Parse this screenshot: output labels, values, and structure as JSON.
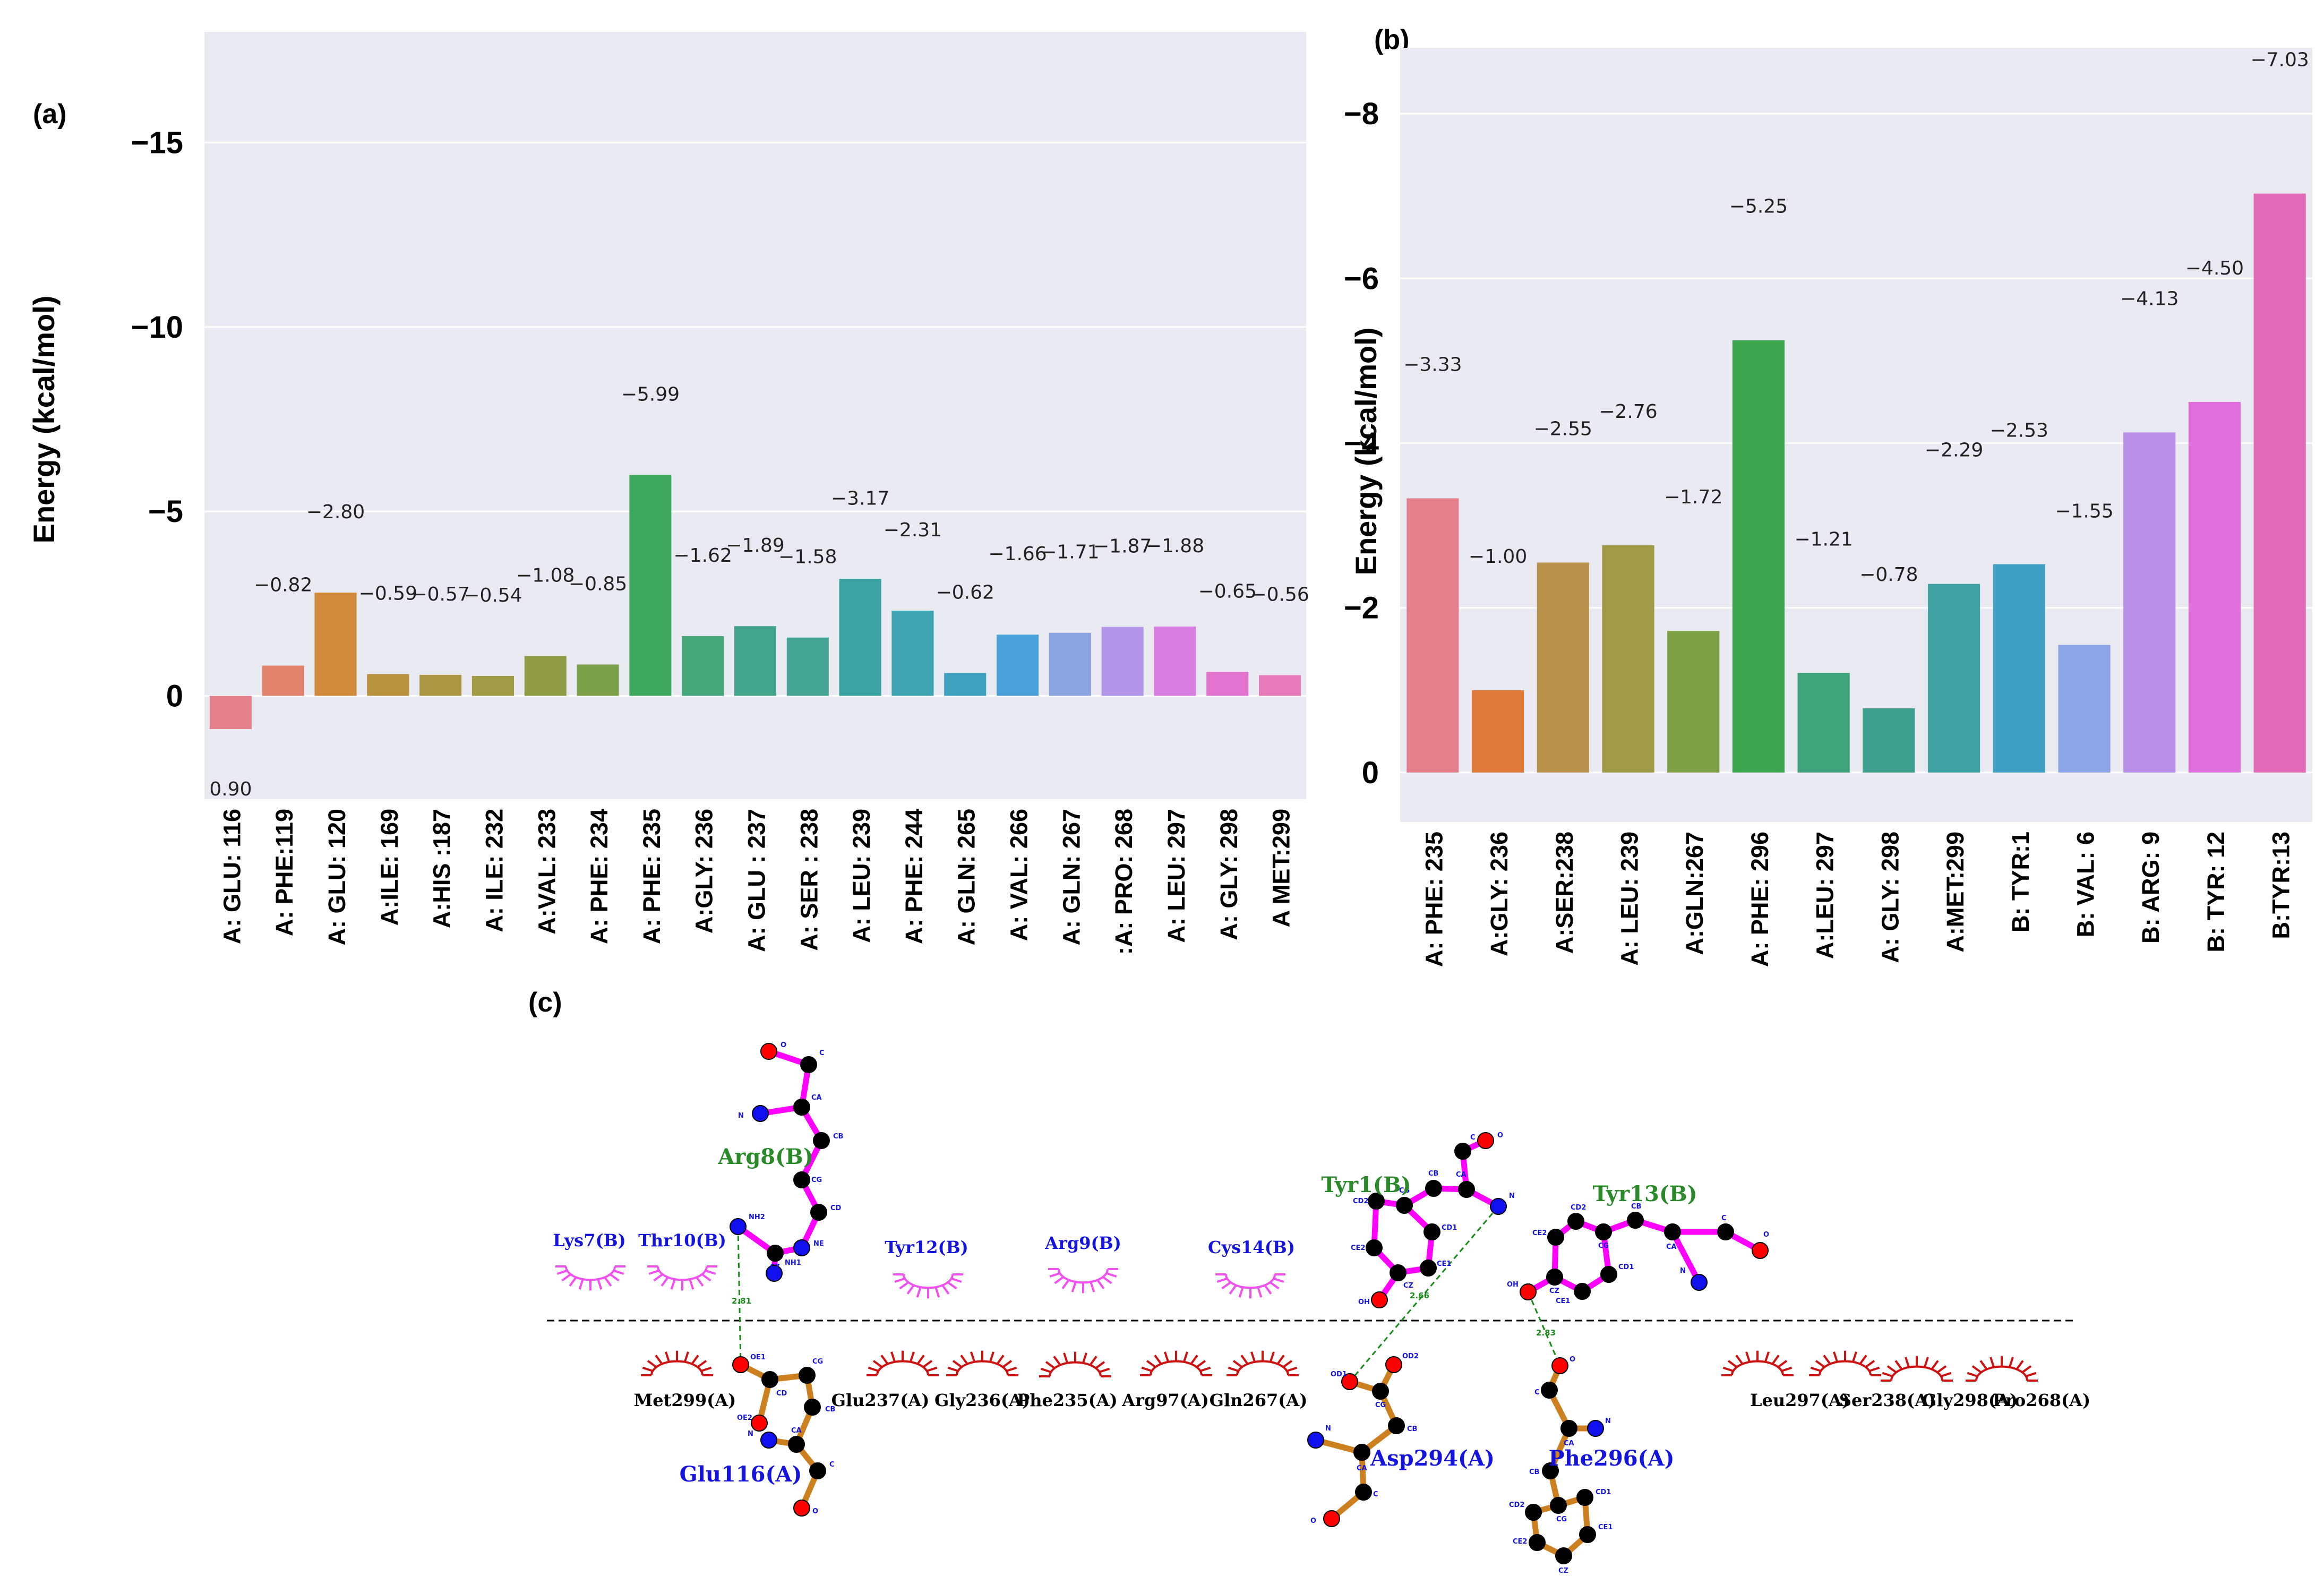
{
  "chart_data": [
    {
      "type": "bar",
      "panel": "(a)",
      "ylabel": "Energy (kcal/mol)",
      "ylim_display": [
        -18,
        2.8
      ],
      "inverted_y": true,
      "yticks": [
        {
          "value": -15,
          "label": "−15"
        },
        {
          "value": -10,
          "label": "−10"
        },
        {
          "value": -5,
          "label": "−5"
        },
        {
          "value": 0,
          "label": "0"
        }
      ],
      "categories": [
        "A: GLU: 116",
        "A: PHE:119",
        "A: GLU: 120",
        "A:ILE: 169",
        "A:HIS :187",
        "A: ILE: 232",
        "A:VAL: 233",
        "A: PHE: 234",
        "A: PHE: 235",
        "A:GLY: 236",
        "A: GLU : 237",
        "A: SER : 238",
        "A: LEU: 239",
        "A: PHE: 244",
        "A: GLN: 265",
        "A: VAL: 266",
        "A: GLN: 267",
        ":A: PRO: 268",
        "A: LEU: 297",
        "A: GLY: 298",
        "A MET:299"
      ],
      "values": [
        0.9,
        -0.82,
        -2.8,
        -0.59,
        -0.57,
        -0.54,
        -1.08,
        -0.85,
        -5.99,
        -1.62,
        -1.89,
        -1.58,
        -3.17,
        -2.31,
        -0.62,
        -1.66,
        -1.71,
        -1.87,
        -1.88,
        -0.65,
        -0.56
      ],
      "value_labels": [
        "0.90",
        "−0.82",
        "−2.80",
        "−0.59",
        "−0.57",
        "−0.54",
        "−1.08",
        "−0.85",
        "−5.99",
        "−1.62",
        "−1.89",
        "−1.58",
        "−3.17",
        "−2.31",
        "−0.62",
        "−1.66",
        "−1.71",
        "−1.87",
        "−1.88",
        "−0.65",
        "−0.56"
      ],
      "colors": [
        "#e57f8c",
        "#e0826c",
        "#cf8a3a",
        "#b8923c",
        "#ac9540",
        "#a09a45",
        "#8f9c45",
        "#7ca04a",
        "#3ea85c",
        "#44a679",
        "#42a58a",
        "#44a595",
        "#3aa3a2",
        "#3ea4b0",
        "#3fa1c0",
        "#4aa0d9",
        "#8aa5e0",
        "#b196ea",
        "#d77ee0",
        "#e274d0",
        "#e77ab8"
      ]
    },
    {
      "type": "bar",
      "panel": "(b)",
      "ylabel": "Energy (kcal/mol)",
      "ylim_display": [
        -8.8,
        0.6
      ],
      "inverted_y": true,
      "yticks": [
        {
          "value": -8,
          "label": "−8"
        },
        {
          "value": -6,
          "label": "−6"
        },
        {
          "value": -4,
          "label": "−4"
        },
        {
          "value": -2,
          "label": "−2"
        },
        {
          "value": 0,
          "label": "0"
        }
      ],
      "categories": [
        "A: PHE: 235",
        "A:GLY: 236",
        "A:SER:238",
        "A: LEU: 239",
        "A:GLN:267",
        "A: PHE: 296",
        "A:LEU: 297",
        "A: GLY: 298",
        "A:MET:299",
        "B: TYR:1",
        "B: VAL: 6",
        "B: ARG: 9",
        "B: TYR: 12",
        "B:TYR:13"
      ],
      "values": [
        -3.33,
        -1.0,
        -2.55,
        -2.76,
        -1.72,
        -5.25,
        -1.21,
        -0.78,
        -2.29,
        -2.53,
        -1.55,
        -4.13,
        -4.5,
        -7.03
      ],
      "value_labels": [
        "−3.33",
        "−1.00",
        "−2.55",
        "−2.76",
        "−1.72",
        "−5.25",
        "−1.21",
        "−0.78",
        "−2.29",
        "−2.53",
        "−1.55",
        "−4.13",
        "−4.50",
        "−7.03"
      ],
      "colors": [
        "#e57f8c",
        "#de7a3a",
        "#b8914a",
        "#9e9a45",
        "#7ea047",
        "#3ea64f",
        "#3fa47c",
        "#3e9f8c",
        "#3ea1a4",
        "#3e9fc2",
        "#8ca5e6",
        "#b98ee8",
        "#e070dd",
        "#e26ab8"
      ]
    }
  ],
  "panels": {
    "a": "(a)",
    "b": "(b)",
    "c": "(c)"
  },
  "diagram_c": {
    "ligand_residues": [
      "Arg8(B)",
      "Tyr1(B)",
      "Tyr13(B)"
    ],
    "hydrophobic_b": [
      "Lys7(B)",
      "Thr10(B)",
      "Tyr12(B)",
      "Arg9(B)",
      "Cys14(B)"
    ],
    "hydrophobic_a": [
      "Met299(A)",
      "Glu237(A)",
      "Gly236(A)",
      "Phe235(A)",
      "Arg97(A)",
      "Gln267(A)",
      "Leu297(A)",
      "Ser238(A)",
      "Gly298(A)",
      "Pro268(A)"
    ],
    "receptor_residues": [
      "Glu116(A)",
      "Asp294(A)",
      "Phe296(A)"
    ],
    "hbond_distances": [
      "2.81",
      "2.66",
      "2.83"
    ],
    "atom_labels": [
      "O",
      "C",
      "CA",
      "N",
      "CB",
      "CG",
      "CD",
      "NE",
      "NH2",
      "CZ",
      "NH1",
      "OH",
      "CE2",
      "CE1",
      "CD2",
      "CD1",
      "OE1",
      "OE2",
      "OD1",
      "OD2"
    ]
  },
  "colors": {
    "plot_bg": "#eaeaf2",
    "grid": "#ffffff",
    "hbond": "#1a8a1a",
    "ligand_bond": "#ff00ff",
    "receptor_bond": "#cc8020",
    "carbon": "#000000",
    "oxygen": "#ff0000",
    "nitrogen": "#1010ee",
    "ligand_label": "#2a8a2a",
    "receptor_label": "#1414dc",
    "hydrophobic_b": "#f050f0",
    "hydrophobic_a": "#cc1111"
  }
}
